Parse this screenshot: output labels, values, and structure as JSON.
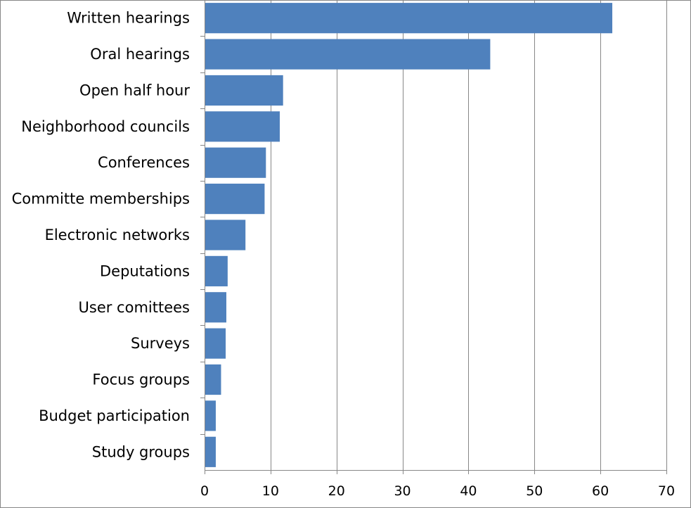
{
  "chart_data": {
    "type": "bar",
    "orientation": "horizontal",
    "categories": [
      "Written hearings",
      "Oral hearings",
      "Open half hour",
      "Neighborhood councils",
      "Conferences",
      "Committe memberships",
      "Electronic networks",
      "Deputations",
      "User comittees",
      "Surveys",
      "Focus groups",
      "Budget participation",
      "Study groups"
    ],
    "values": [
      61.8,
      43.3,
      11.9,
      11.4,
      9.3,
      9.1,
      6.2,
      3.5,
      3.3,
      3.2,
      2.5,
      1.7,
      1.7
    ],
    "xlim": [
      0,
      70
    ],
    "xticks": [
      "0",
      "10",
      "20",
      "30",
      "40",
      "50",
      "60",
      "70"
    ],
    "title": "",
    "xlabel": "",
    "ylabel": "",
    "grid": "vertical",
    "legend": "none",
    "bar_color": "#4f81bd",
    "grid_color": "#878787"
  }
}
